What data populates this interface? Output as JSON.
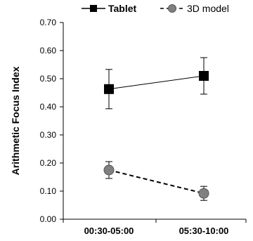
{
  "chart_data": {
    "type": "line",
    "categories": [
      "00:30-05:00",
      "05:30-10:00"
    ],
    "ylabel": "Arithmetic Focus Index",
    "ylim": [
      0,
      0.7
    ],
    "yticks": [
      "0.00",
      "0.10",
      "0.20",
      "0.30",
      "0.40",
      "0.50",
      "0.60",
      "0.70"
    ],
    "grid": false,
    "legend_position": "top",
    "series": [
      {
        "name": "Tablet",
        "values": [
          0.463,
          0.51
        ],
        "error": [
          0.07,
          0.065
        ],
        "marker": "square",
        "line_style": "solid",
        "color": "#000000"
      },
      {
        "name": "3D model",
        "values": [
          0.175,
          0.092
        ],
        "error": [
          0.03,
          0.025
        ],
        "marker": "circle",
        "line_style": "dashed",
        "color": "#808080"
      }
    ]
  }
}
